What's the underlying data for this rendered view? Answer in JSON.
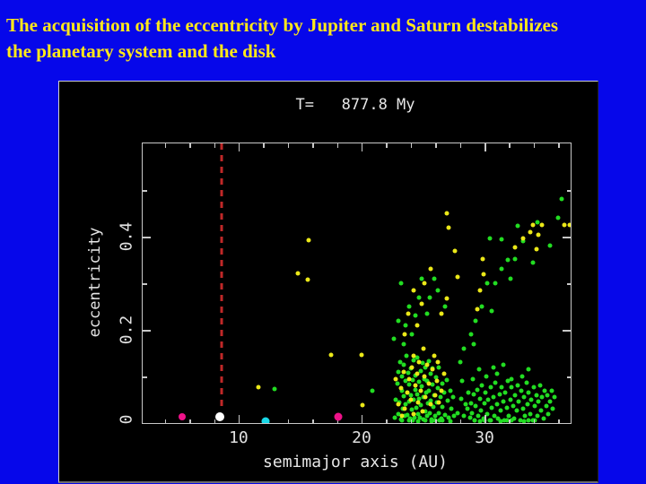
{
  "slide": {
    "title_line1": "The acquisition of the eccentricity by Jupiter and Saturn destabilizes",
    "title_line2": "the planetary system and the disk",
    "title_color": "#ffe81a",
    "background_color": "#0607ea",
    "panel_background": "#000000"
  },
  "chart_data": {
    "type": "scatter",
    "title": "T=   877.8 My",
    "xlabel": "semimajor axis (AU)",
    "ylabel": "eccentricity",
    "xlim": [
      2.2,
      37.0
    ],
    "ylim": [
      0,
      0.6
    ],
    "grid": false,
    "axis_color": "#c8c8c8",
    "text_color": "#e6e6e6",
    "x_major_ticks": [
      10,
      20,
      30
    ],
    "x_major_tick_labels": [
      "10",
      "20",
      "30"
    ],
    "x_minor_ticks": [
      4,
      6,
      8,
      12,
      14,
      16,
      18,
      22,
      24,
      26,
      28,
      32,
      34,
      36
    ],
    "y_major_ticks": [
      0.2,
      0.4
    ],
    "y_major_tick_labels": [
      "0.2",
      "0.4"
    ],
    "y_minor_ticks": [
      0.1,
      0.3,
      0.5
    ],
    "origin_label": "0",
    "reference_line": {
      "x": 8.6,
      "color": "#c02828",
      "style": "dashed",
      "e_from": 0.035,
      "e_to": 0.6
    },
    "series": [
      {
        "name": "disk-particles-green",
        "color": "#22dd22",
        "marker_size": 5,
        "points": [
          [
            22.7,
            0.012
          ],
          [
            22.8,
            0.05
          ],
          [
            22.9,
            0.085
          ],
          [
            23.0,
            0.02
          ],
          [
            23.0,
            0.11
          ],
          [
            23.1,
            0.045
          ],
          [
            23.15,
            0.13
          ],
          [
            23.2,
            0.008
          ],
          [
            23.25,
            0.07
          ],
          [
            23.3,
            0.1
          ],
          [
            23.35,
            0.03
          ],
          [
            23.4,
            0.058
          ],
          [
            23.45,
            0.125
          ],
          [
            23.5,
            0.015
          ],
          [
            23.55,
            0.09
          ],
          [
            23.6,
            0.04
          ],
          [
            23.65,
            0.145
          ],
          [
            23.7,
            0.065
          ],
          [
            23.75,
            0.018
          ],
          [
            23.8,
            0.108
          ],
          [
            23.85,
            0.047
          ],
          [
            23.9,
            0.082
          ],
          [
            23.95,
            0.01
          ],
          [
            24.0,
            0.06
          ],
          [
            24.05,
            0.118
          ],
          [
            24.1,
            0.028
          ],
          [
            24.15,
            0.092
          ],
          [
            24.2,
            0.05
          ],
          [
            24.25,
            0.135
          ],
          [
            24.3,
            0.012
          ],
          [
            24.35,
            0.072
          ],
          [
            24.4,
            0.102
          ],
          [
            24.45,
            0.032
          ],
          [
            24.5,
            0.062
          ],
          [
            24.55,
            0.14
          ],
          [
            24.6,
            0.02
          ],
          [
            24.65,
            0.088
          ],
          [
            24.7,
            0.052
          ],
          [
            24.75,
            0.012
          ],
          [
            24.8,
            0.112
          ],
          [
            24.85,
            0.038
          ],
          [
            24.9,
            0.078
          ],
          [
            24.95,
            0.128
          ],
          [
            25.0,
            0.008
          ],
          [
            25.05,
            0.055
          ],
          [
            25.1,
            0.095
          ],
          [
            25.15,
            0.025
          ],
          [
            25.2,
            0.12
          ],
          [
            25.25,
            0.065
          ],
          [
            25.3,
            0.015
          ],
          [
            25.35,
            0.09
          ],
          [
            25.4,
            0.042
          ],
          [
            25.45,
            0.132
          ],
          [
            25.5,
            0.07
          ],
          [
            25.55,
            0.022
          ],
          [
            25.6,
            0.105
          ],
          [
            25.65,
            0.048
          ],
          [
            25.7,
            0.008
          ],
          [
            25.75,
            0.082
          ],
          [
            25.8,
            0.118
          ],
          [
            25.85,
            0.035
          ],
          [
            25.9,
            0.06
          ],
          [
            26.0,
            0.015
          ],
          [
            26.05,
            0.098
          ],
          [
            26.1,
            0.045
          ],
          [
            26.2,
            0.075
          ],
          [
            26.25,
            0.022
          ],
          [
            26.3,
            0.12
          ],
          [
            26.4,
            0.055
          ],
          [
            26.5,
            0.01
          ],
          [
            26.55,
            0.085
          ],
          [
            26.6,
            0.035
          ],
          [
            26.7,
            0.065
          ],
          [
            26.8,
            0.018
          ],
          [
            26.9,
            0.092
          ],
          [
            27.0,
            0.048
          ],
          [
            27.1,
            0.012
          ],
          [
            27.2,
            0.07
          ],
          [
            27.3,
            0.03
          ],
          [
            27.45,
            0.055
          ],
          [
            27.55,
            0.015
          ],
          [
            23.3,
            0.005
          ],
          [
            23.9,
            0.005
          ],
          [
            24.15,
            0.006
          ],
          [
            24.6,
            0.004
          ],
          [
            25.2,
            0.006
          ],
          [
            25.7,
            0.004
          ],
          [
            26.0,
            0.005
          ],
          [
            26.35,
            0.005
          ],
          [
            26.6,
            0.006
          ],
          [
            27.2,
            0.004
          ],
          [
            22.6,
            0.18
          ],
          [
            23.0,
            0.22
          ],
          [
            23.2,
            0.3
          ],
          [
            23.4,
            0.17
          ],
          [
            23.6,
            0.21
          ],
          [
            23.9,
            0.25
          ],
          [
            24.1,
            0.19
          ],
          [
            24.4,
            0.23
          ],
          [
            24.7,
            0.27
          ],
          [
            24.9,
            0.31
          ],
          [
            25.3,
            0.235
          ],
          [
            25.55,
            0.27
          ],
          [
            25.9,
            0.31
          ],
          [
            26.2,
            0.285
          ],
          [
            26.8,
            0.25
          ],
          [
            27.8,
            0.022
          ],
          [
            28.1,
            0.052
          ],
          [
            28.35,
            0.015
          ],
          [
            28.2,
            0.09
          ],
          [
            28.5,
            0.04
          ],
          [
            28.6,
            0.03
          ],
          [
            28.7,
            0.065
          ],
          [
            28.8,
            0.012
          ],
          [
            28.9,
            0.042
          ],
          [
            29.0,
            0.022
          ],
          [
            29.05,
            0.095
          ],
          [
            29.1,
            0.062
          ],
          [
            29.2,
            0.006
          ],
          [
            29.3,
            0.036
          ],
          [
            29.4,
            0.072
          ],
          [
            29.5,
            0.016
          ],
          [
            29.55,
            0.115
          ],
          [
            29.6,
            0.052
          ],
          [
            29.7,
            0.026
          ],
          [
            29.8,
            0.08
          ],
          [
            29.9,
            0.01
          ],
          [
            30.0,
            0.042
          ],
          [
            30.1,
            0.066
          ],
          [
            30.15,
            0.1
          ],
          [
            30.2,
            0.02
          ],
          [
            30.3,
            0.05
          ],
          [
            30.4,
            0.006
          ],
          [
            30.5,
            0.076
          ],
          [
            30.6,
            0.032
          ],
          [
            30.7,
            0.056
          ],
          [
            30.75,
            0.12
          ],
          [
            30.8,
            0.016
          ],
          [
            30.9,
            0.086
          ],
          [
            31.0,
            0.04
          ],
          [
            31.05,
            0.105
          ],
          [
            31.1,
            0.01
          ],
          [
            31.2,
            0.062
          ],
          [
            31.3,
            0.026
          ],
          [
            31.4,
            0.076
          ],
          [
            31.5,
            0.046
          ],
          [
            31.55,
            0.125
          ],
          [
            31.6,
            0.006
          ],
          [
            31.7,
            0.066
          ],
          [
            31.8,
            0.032
          ],
          [
            31.9,
            0.09
          ],
          [
            32.0,
            0.016
          ],
          [
            32.1,
            0.05
          ],
          [
            32.15,
            0.095
          ],
          [
            32.2,
            0.076
          ],
          [
            32.3,
            0.036
          ],
          [
            32.4,
            0.01
          ],
          [
            32.5,
            0.06
          ],
          [
            32.6,
            0.026
          ],
          [
            32.7,
            0.08
          ],
          [
            32.8,
            0.046
          ],
          [
            32.9,
            0.006
          ],
          [
            33.0,
            0.07
          ],
          [
            33.05,
            0.1
          ],
          [
            33.1,
            0.03
          ],
          [
            33.2,
            0.056
          ],
          [
            33.3,
            0.016
          ],
          [
            33.4,
            0.086
          ],
          [
            33.5,
            0.04
          ],
          [
            33.55,
            0.115
          ],
          [
            33.6,
            0.066
          ],
          [
            33.7,
            0.02
          ],
          [
            33.8,
            0.05
          ],
          [
            33.9,
            0.006
          ],
          [
            34.0,
            0.076
          ],
          [
            34.1,
            0.036
          ],
          [
            34.2,
            0.06
          ],
          [
            34.3,
            0.016
          ],
          [
            34.4,
            0.046
          ],
          [
            34.5,
            0.08
          ],
          [
            34.6,
            0.026
          ],
          [
            34.7,
            0.056
          ],
          [
            34.8,
            0.01
          ],
          [
            34.9,
            0.07
          ],
          [
            35.0,
            0.036
          ],
          [
            35.1,
            0.06
          ],
          [
            35.2,
            0.02
          ],
          [
            35.3,
            0.046
          ],
          [
            35.45,
            0.07
          ],
          [
            35.55,
            0.03
          ],
          [
            35.7,
            0.055
          ],
          [
            29.2,
            0.005
          ],
          [
            29.6,
            0.004
          ],
          [
            30.0,
            0.006
          ],
          [
            30.5,
            0.005
          ],
          [
            31.3,
            0.004
          ],
          [
            31.8,
            0.005
          ],
          [
            32.2,
            0.005
          ],
          [
            33.2,
            0.004
          ],
          [
            33.6,
            0.006
          ],
          [
            34.1,
            0.005
          ],
          [
            28.0,
            0.13
          ],
          [
            28.3,
            0.16
          ],
          [
            28.9,
            0.19
          ],
          [
            29.1,
            0.17
          ],
          [
            29.3,
            0.22
          ],
          [
            29.8,
            0.25
          ],
          [
            30.2,
            0.3
          ],
          [
            30.4,
            0.397
          ],
          [
            30.6,
            0.24
          ],
          [
            30.9,
            0.3
          ],
          [
            31.4,
            0.33
          ],
          [
            31.4,
            0.395
          ],
          [
            31.9,
            0.35
          ],
          [
            32.1,
            0.31
          ],
          [
            32.5,
            0.352
          ],
          [
            32.7,
            0.423
          ],
          [
            33.1,
            0.39
          ],
          [
            33.9,
            0.345
          ],
          [
            34.3,
            0.43
          ],
          [
            35.3,
            0.38
          ],
          [
            36.0,
            0.44
          ],
          [
            36.3,
            0.48
          ],
          [
            12.9,
            0.073
          ],
          [
            20.9,
            0.07
          ]
        ]
      },
      {
        "name": "disk-particles-yellow",
        "color": "#ebe818",
        "marker_size": 5,
        "points": [
          [
            22.8,
            0.095
          ],
          [
            23.0,
            0.04
          ],
          [
            23.2,
            0.075
          ],
          [
            23.3,
            0.015
          ],
          [
            23.4,
            0.11
          ],
          [
            23.5,
            0.03
          ],
          [
            23.7,
            0.065
          ],
          [
            23.9,
            0.095
          ],
          [
            24.0,
            0.05
          ],
          [
            24.1,
            0.12
          ],
          [
            24.2,
            0.02
          ],
          [
            24.25,
            0.145
          ],
          [
            24.35,
            0.08
          ],
          [
            24.5,
            0.105
          ],
          [
            24.6,
            0.045
          ],
          [
            24.7,
            0.13
          ],
          [
            24.8,
            0.07
          ],
          [
            24.95,
            0.025
          ],
          [
            25.0,
            0.16
          ],
          [
            25.1,
            0.1
          ],
          [
            25.2,
            0.055
          ],
          [
            25.35,
            0.125
          ],
          [
            25.5,
            0.085
          ],
          [
            25.65,
            0.04
          ],
          [
            25.8,
            0.115
          ],
          [
            25.9,
            0.145
          ],
          [
            25.95,
            0.06
          ],
          [
            26.1,
            0.09
          ],
          [
            26.2,
            0.13
          ],
          [
            26.3,
            0.045
          ],
          [
            26.5,
            0.07
          ],
          [
            26.7,
            0.105
          ],
          [
            23.5,
            0.19
          ],
          [
            23.8,
            0.235
          ],
          [
            24.2,
            0.285
          ],
          [
            24.5,
            0.21
          ],
          [
            24.9,
            0.255
          ],
          [
            25.1,
            0.3
          ],
          [
            25.6,
            0.33
          ],
          [
            26.5,
            0.234
          ],
          [
            26.9,
            0.268
          ],
          [
            27.6,
            0.37
          ],
          [
            27.8,
            0.314
          ],
          [
            26.9,
            0.45
          ],
          [
            27.1,
            0.42
          ],
          [
            29.4,
            0.245
          ],
          [
            29.6,
            0.285
          ],
          [
            29.9,
            0.32
          ],
          [
            29.85,
            0.352
          ],
          [
            32.5,
            0.377
          ],
          [
            33.1,
            0.397
          ],
          [
            33.7,
            0.41
          ],
          [
            33.9,
            0.425
          ],
          [
            34.2,
            0.374
          ],
          [
            34.4,
            0.404
          ],
          [
            34.7,
            0.425
          ],
          [
            36.5,
            0.425
          ],
          [
            36.9,
            0.425
          ],
          [
            11.6,
            0.077
          ],
          [
            14.8,
            0.322
          ],
          [
            15.6,
            0.307
          ],
          [
            15.7,
            0.393
          ],
          [
            17.5,
            0.146
          ],
          [
            20.0,
            0.146
          ],
          [
            20.1,
            0.038
          ]
        ]
      }
    ],
    "planets": [
      {
        "name": "planet-magenta-inner",
        "color": "#ee1289",
        "a": 5.4,
        "e": 0.013,
        "size": 8
      },
      {
        "name": "planet-white",
        "color": "#ffffff",
        "a": 8.5,
        "e": 0.013,
        "size": 10
      },
      {
        "name": "planet-cyan",
        "color": "#18d8e8",
        "a": 12.2,
        "e": 0.004,
        "size": 9
      },
      {
        "name": "planet-magenta-outer",
        "color": "#ee1289",
        "a": 18.1,
        "e": 0.013,
        "size": 9
      }
    ],
    "legend": null
  }
}
